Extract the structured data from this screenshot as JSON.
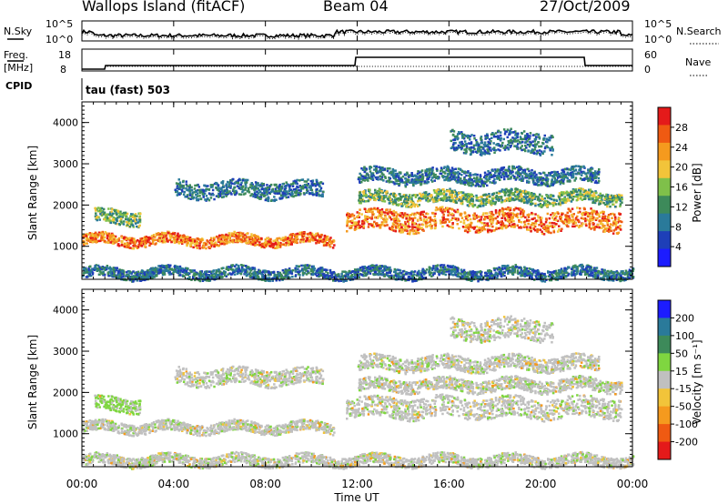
{
  "header": {
    "station": "Wallops Island (fitACF)",
    "beam": "Beam 04",
    "date": "27/Oct/2009"
  },
  "top_panels": {
    "nsky_label": "N.Sky",
    "nsearch_label": "N.Search",
    "noise_ticks": [
      "10^5",
      "10^0"
    ],
    "freq_label_1": "Freq.",
    "freq_label_2": "[MHz]",
    "freq_ticks": [
      "18",
      "8"
    ],
    "nave_label": "Nave",
    "nave_ticks": [
      "60",
      "0"
    ],
    "cpid_label": "CPID",
    "cpid_value": "tau (fast) 503"
  },
  "colors": {
    "power_scale": [
      "#1c1cff",
      "#1e3fb8",
      "#2a7a9a",
      "#3d8a5a",
      "#7fc04a",
      "#f2c43a",
      "#f59a1e",
      "#ef5a12",
      "#e41a1a"
    ],
    "velocity_scale": [
      "#e41a1a",
      "#ef5a12",
      "#f59a1e",
      "#f2c43a",
      "#c0c0c0",
      "#7fd640",
      "#3d8a5a",
      "#2a7a9a",
      "#1c1cff"
    ]
  },
  "chart_data": [
    {
      "type": "heatmap",
      "name": "power",
      "ylabel": "Slant Range [km]",
      "yticks": [
        "4000",
        "3000",
        "2000",
        "1000"
      ],
      "ylim": [
        200,
        4500
      ],
      "colorbar_label": "Power [dB]",
      "colorbar_ticks": [
        "28",
        "24",
        "20",
        "16",
        "12",
        "8",
        "4"
      ],
      "clim": [
        0,
        32
      ],
      "bands": [
        {
          "t0": 0.0,
          "t1": 11.0,
          "r0": 1050,
          "r1": 1300,
          "level": "high"
        },
        {
          "t0": 0.5,
          "t1": 2.5,
          "r0": 1550,
          "r1": 1900,
          "level": "mid"
        },
        {
          "t0": 4.0,
          "t1": 10.5,
          "r0": 2200,
          "r1": 2600,
          "level": "low"
        },
        {
          "t0": 11.5,
          "t1": 23.5,
          "r0": 1400,
          "r1": 1900,
          "level": "high"
        },
        {
          "t0": 12.0,
          "t1": 23.5,
          "r0": 2050,
          "r1": 2350,
          "level": "mid"
        },
        {
          "t0": 12.0,
          "t1": 22.5,
          "r0": 2550,
          "r1": 2900,
          "level": "low"
        },
        {
          "t0": 16.0,
          "t1": 20.5,
          "r0": 3300,
          "r1": 3800,
          "level": "low"
        },
        {
          "t0": 0.0,
          "t1": 24.0,
          "r0": 250,
          "r1": 500,
          "level": "low"
        }
      ]
    },
    {
      "type": "heatmap",
      "name": "velocity",
      "ylabel": "Slant Range [km]",
      "yticks": [
        "4000",
        "3000",
        "2000",
        "1000"
      ],
      "ylim": [
        200,
        4500
      ],
      "xlabel": "Time UT",
      "xticks": [
        "00:00",
        "04:00",
        "08:00",
        "12:00",
        "16:00",
        "20:00",
        "00:00"
      ],
      "xlim": [
        0,
        24
      ],
      "colorbar_label": "Velocity [m s⁻¹]",
      "colorbar_ticks": [
        "200",
        "100",
        "50",
        "15",
        "-15",
        "-50",
        "-100",
        "-200"
      ],
      "clim": [
        -250,
        250
      ]
    }
  ]
}
